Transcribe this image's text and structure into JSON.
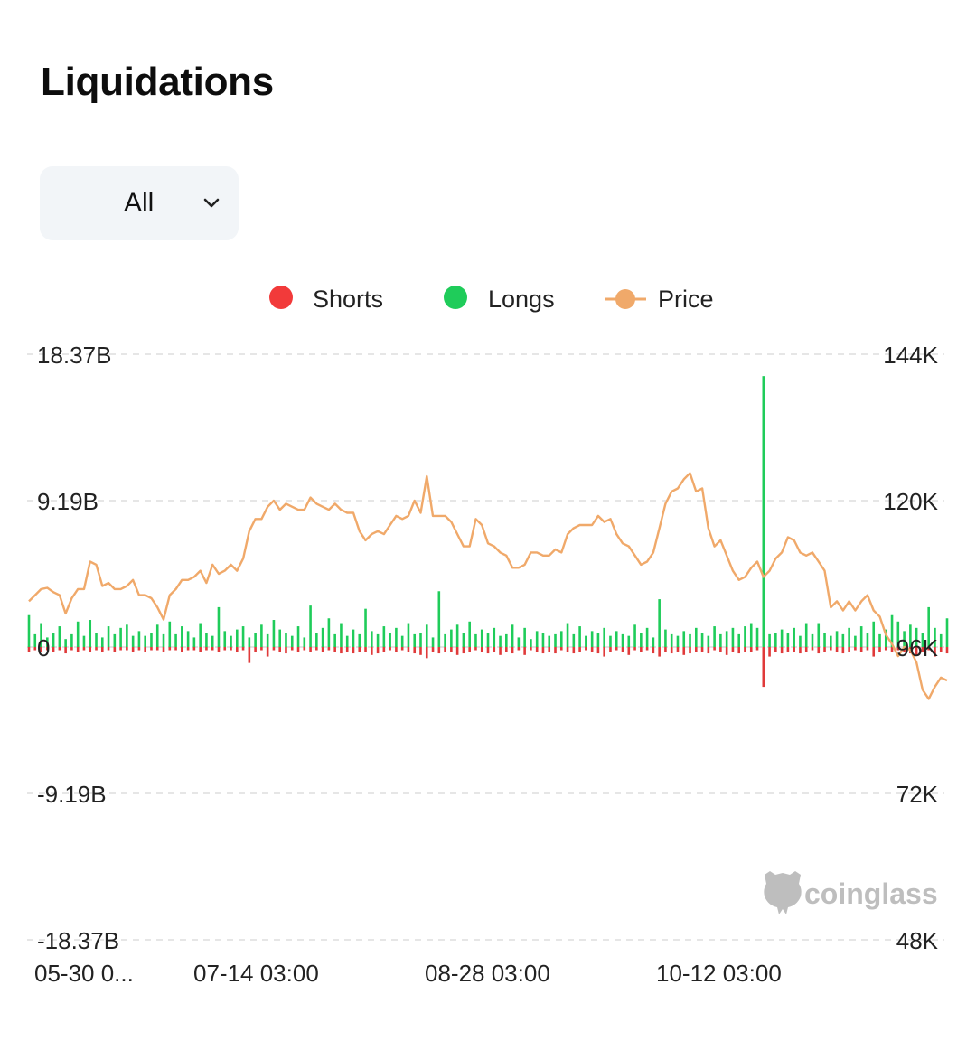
{
  "header": {
    "title": "Liquidations"
  },
  "filter": {
    "selected": "All"
  },
  "legend": [
    {
      "label": "Shorts",
      "color": "#f23a3a"
    },
    {
      "label": "Longs",
      "color": "#1fcc5a"
    },
    {
      "label": "Price",
      "color": "#f0a96a"
    }
  ],
  "watermark": "coinglass",
  "chart_data": {
    "type": "bar+line",
    "left_axis": {
      "ticks": [
        "18.37B",
        "9.19B",
        "0",
        "-9.19B",
        "-18.37B"
      ],
      "range": [
        -18.37,
        18.37
      ],
      "unit": "B"
    },
    "right_axis": {
      "ticks": [
        "144K",
        "120K",
        "96K",
        "72K",
        "48K"
      ],
      "range": [
        48000,
        144000
      ]
    },
    "x_ticks": [
      "05-30 0...",
      "07-14 03:00",
      "08-28 03:00",
      "10-12 03:00"
    ],
    "grid": true,
    "legend_position": "top",
    "price": [
      103500,
      104500,
      105500,
      105700,
      105000,
      104500,
      101500,
      104000,
      105500,
      105500,
      110000,
      109500,
      106000,
      106500,
      105500,
      105500,
      106000,
      107000,
      104500,
      104500,
      104000,
      102500,
      100500,
      104500,
      105500,
      107000,
      107000,
      107500,
      108500,
      106500,
      109500,
      108000,
      108500,
      109500,
      108500,
      110500,
      115000,
      117000,
      117000,
      119000,
      120000,
      118500,
      119500,
      119000,
      118500,
      118500,
      120500,
      119500,
      119000,
      118500,
      119500,
      118500,
      118000,
      118000,
      115000,
      113500,
      114500,
      115000,
      114500,
      116000,
      117500,
      117000,
      117500,
      120000,
      118000,
      124000,
      117500,
      117500,
      117500,
      116500,
      114500,
      112500,
      112500,
      117000,
      116000,
      113000,
      112500,
      111500,
      111000,
      109000,
      109000,
      109500,
      111500,
      111500,
      111000,
      111000,
      112000,
      111500,
      114500,
      115500,
      116000,
      116000,
      116000,
      117500,
      116500,
      117000,
      114500,
      113000,
      112500,
      111000,
      109500,
      110000,
      111500,
      115500,
      119500,
      121500,
      122000,
      123500,
      124500,
      121500,
      122000,
      115500,
      112500,
      113500,
      111000,
      108500,
      107000,
      107500,
      109000,
      110000,
      107500,
      108500,
      110500,
      111500,
      114000,
      113500,
      111500,
      111000,
      111500,
      110000,
      108500,
      102500,
      103500,
      102000,
      103500,
      102000,
      103500,
      104500,
      102000,
      101000,
      98000,
      96500,
      94500,
      96000,
      95500,
      93500,
      89000,
      87500,
      89500,
      91000,
      90500
    ],
    "longs_B": [
      2.0,
      0.8,
      1.5,
      0.6,
      0.9,
      1.3,
      0.5,
      0.8,
      1.6,
      0.7,
      1.7,
      0.9,
      0.6,
      1.3,
      0.8,
      1.2,
      1.4,
      0.7,
      1.0,
      0.7,
      0.9,
      1.4,
      0.8,
      1.6,
      0.8,
      1.3,
      1.0,
      0.6,
      1.5,
      0.9,
      0.7,
      2.5,
      1.0,
      0.7,
      1.1,
      1.3,
      0.6,
      0.9,
      1.4,
      0.8,
      1.7,
      1.1,
      0.9,
      0.7,
      1.3,
      0.6,
      2.6,
      0.9,
      1.2,
      1.8,
      0.8,
      1.5,
      0.7,
      1.1,
      0.8,
      2.4,
      1.0,
      0.8,
      1.3,
      0.9,
      1.2,
      0.7,
      1.5,
      0.8,
      0.9,
      1.4,
      0.6,
      3.5,
      0.8,
      1.1,
      1.4,
      0.9,
      1.6,
      0.8,
      1.1,
      0.9,
      1.2,
      0.7,
      0.8,
      1.4,
      0.6,
      1.2,
      0.5,
      1.0,
      0.9,
      0.7,
      0.8,
      1.0,
      1.5,
      0.8,
      1.3,
      0.7,
      1.0,
      0.9,
      1.2,
      0.7,
      1.0,
      0.8,
      0.7,
      1.4,
      0.9,
      1.2,
      0.6,
      3.0,
      1.1,
      0.8,
      0.7,
      1.0,
      0.8,
      1.2,
      0.9,
      0.7,
      1.3,
      0.8,
      1.0,
      1.2,
      0.8,
      1.3,
      1.5,
      1.2,
      17.0,
      0.8,
      0.9,
      1.1,
      0.9,
      1.2,
      0.7,
      1.5,
      0.8,
      1.5,
      0.9,
      0.7,
      1.0,
      0.8,
      1.2,
      0.7,
      1.3,
      0.9,
      1.6,
      0.8,
      1.1,
      2.0,
      1.6,
      1.0,
      1.4,
      1.2,
      0.9,
      2.5,
      1.2,
      0.8,
      1.8
    ],
    "shorts_B": [
      -0.3,
      -0.2,
      -0.3,
      -0.2,
      -0.3,
      -0.2,
      -0.4,
      -0.2,
      -0.3,
      -0.2,
      -0.3,
      -0.2,
      -0.3,
      -0.2,
      -0.3,
      -0.2,
      -0.2,
      -0.3,
      -0.2,
      -0.3,
      -0.2,
      -0.2,
      -0.3,
      -0.2,
      -0.2,
      -0.3,
      -0.2,
      -0.2,
      -0.3,
      -0.2,
      -0.2,
      -0.3,
      -0.2,
      -0.2,
      -0.3,
      -0.2,
      -1.0,
      -0.3,
      -0.2,
      -0.6,
      -0.2,
      -0.3,
      -0.4,
      -0.2,
      -0.3,
      -0.2,
      -0.3,
      -0.2,
      -0.3,
      -0.2,
      -0.3,
      -0.4,
      -0.3,
      -0.4,
      -0.3,
      -0.3,
      -0.5,
      -0.4,
      -0.3,
      -0.2,
      -0.3,
      -0.2,
      -0.3,
      -0.4,
      -0.5,
      -0.7,
      -0.3,
      -0.4,
      -0.3,
      -0.3,
      -0.5,
      -0.4,
      -0.3,
      -0.2,
      -0.3,
      -0.4,
      -0.3,
      -0.5,
      -0.3,
      -0.4,
      -0.2,
      -0.5,
      -0.2,
      -0.3,
      -0.4,
      -0.3,
      -0.4,
      -0.2,
      -0.3,
      -0.4,
      -0.3,
      -0.2,
      -0.3,
      -0.4,
      -0.6,
      -0.3,
      -0.2,
      -0.3,
      -0.5,
      -0.2,
      -0.3,
      -0.2,
      -0.4,
      -0.6,
      -0.3,
      -0.4,
      -0.3,
      -0.5,
      -0.4,
      -0.3,
      -0.3,
      -0.4,
      -0.2,
      -0.3,
      -0.5,
      -0.3,
      -0.4,
      -0.3,
      -0.3,
      -0.2,
      -2.5,
      -0.6,
      -0.3,
      -0.4,
      -0.3,
      -0.3,
      -0.4,
      -0.3,
      -0.2,
      -0.4,
      -0.3,
      -0.2,
      -0.3,
      -0.4,
      -0.3,
      -0.2,
      -0.3,
      -0.2,
      -0.6,
      -0.3,
      -0.2,
      -0.3,
      -0.2,
      -0.3,
      -0.4,
      -0.5,
      -0.3,
      -0.2,
      -0.6,
      -0.3,
      -0.4
    ]
  }
}
